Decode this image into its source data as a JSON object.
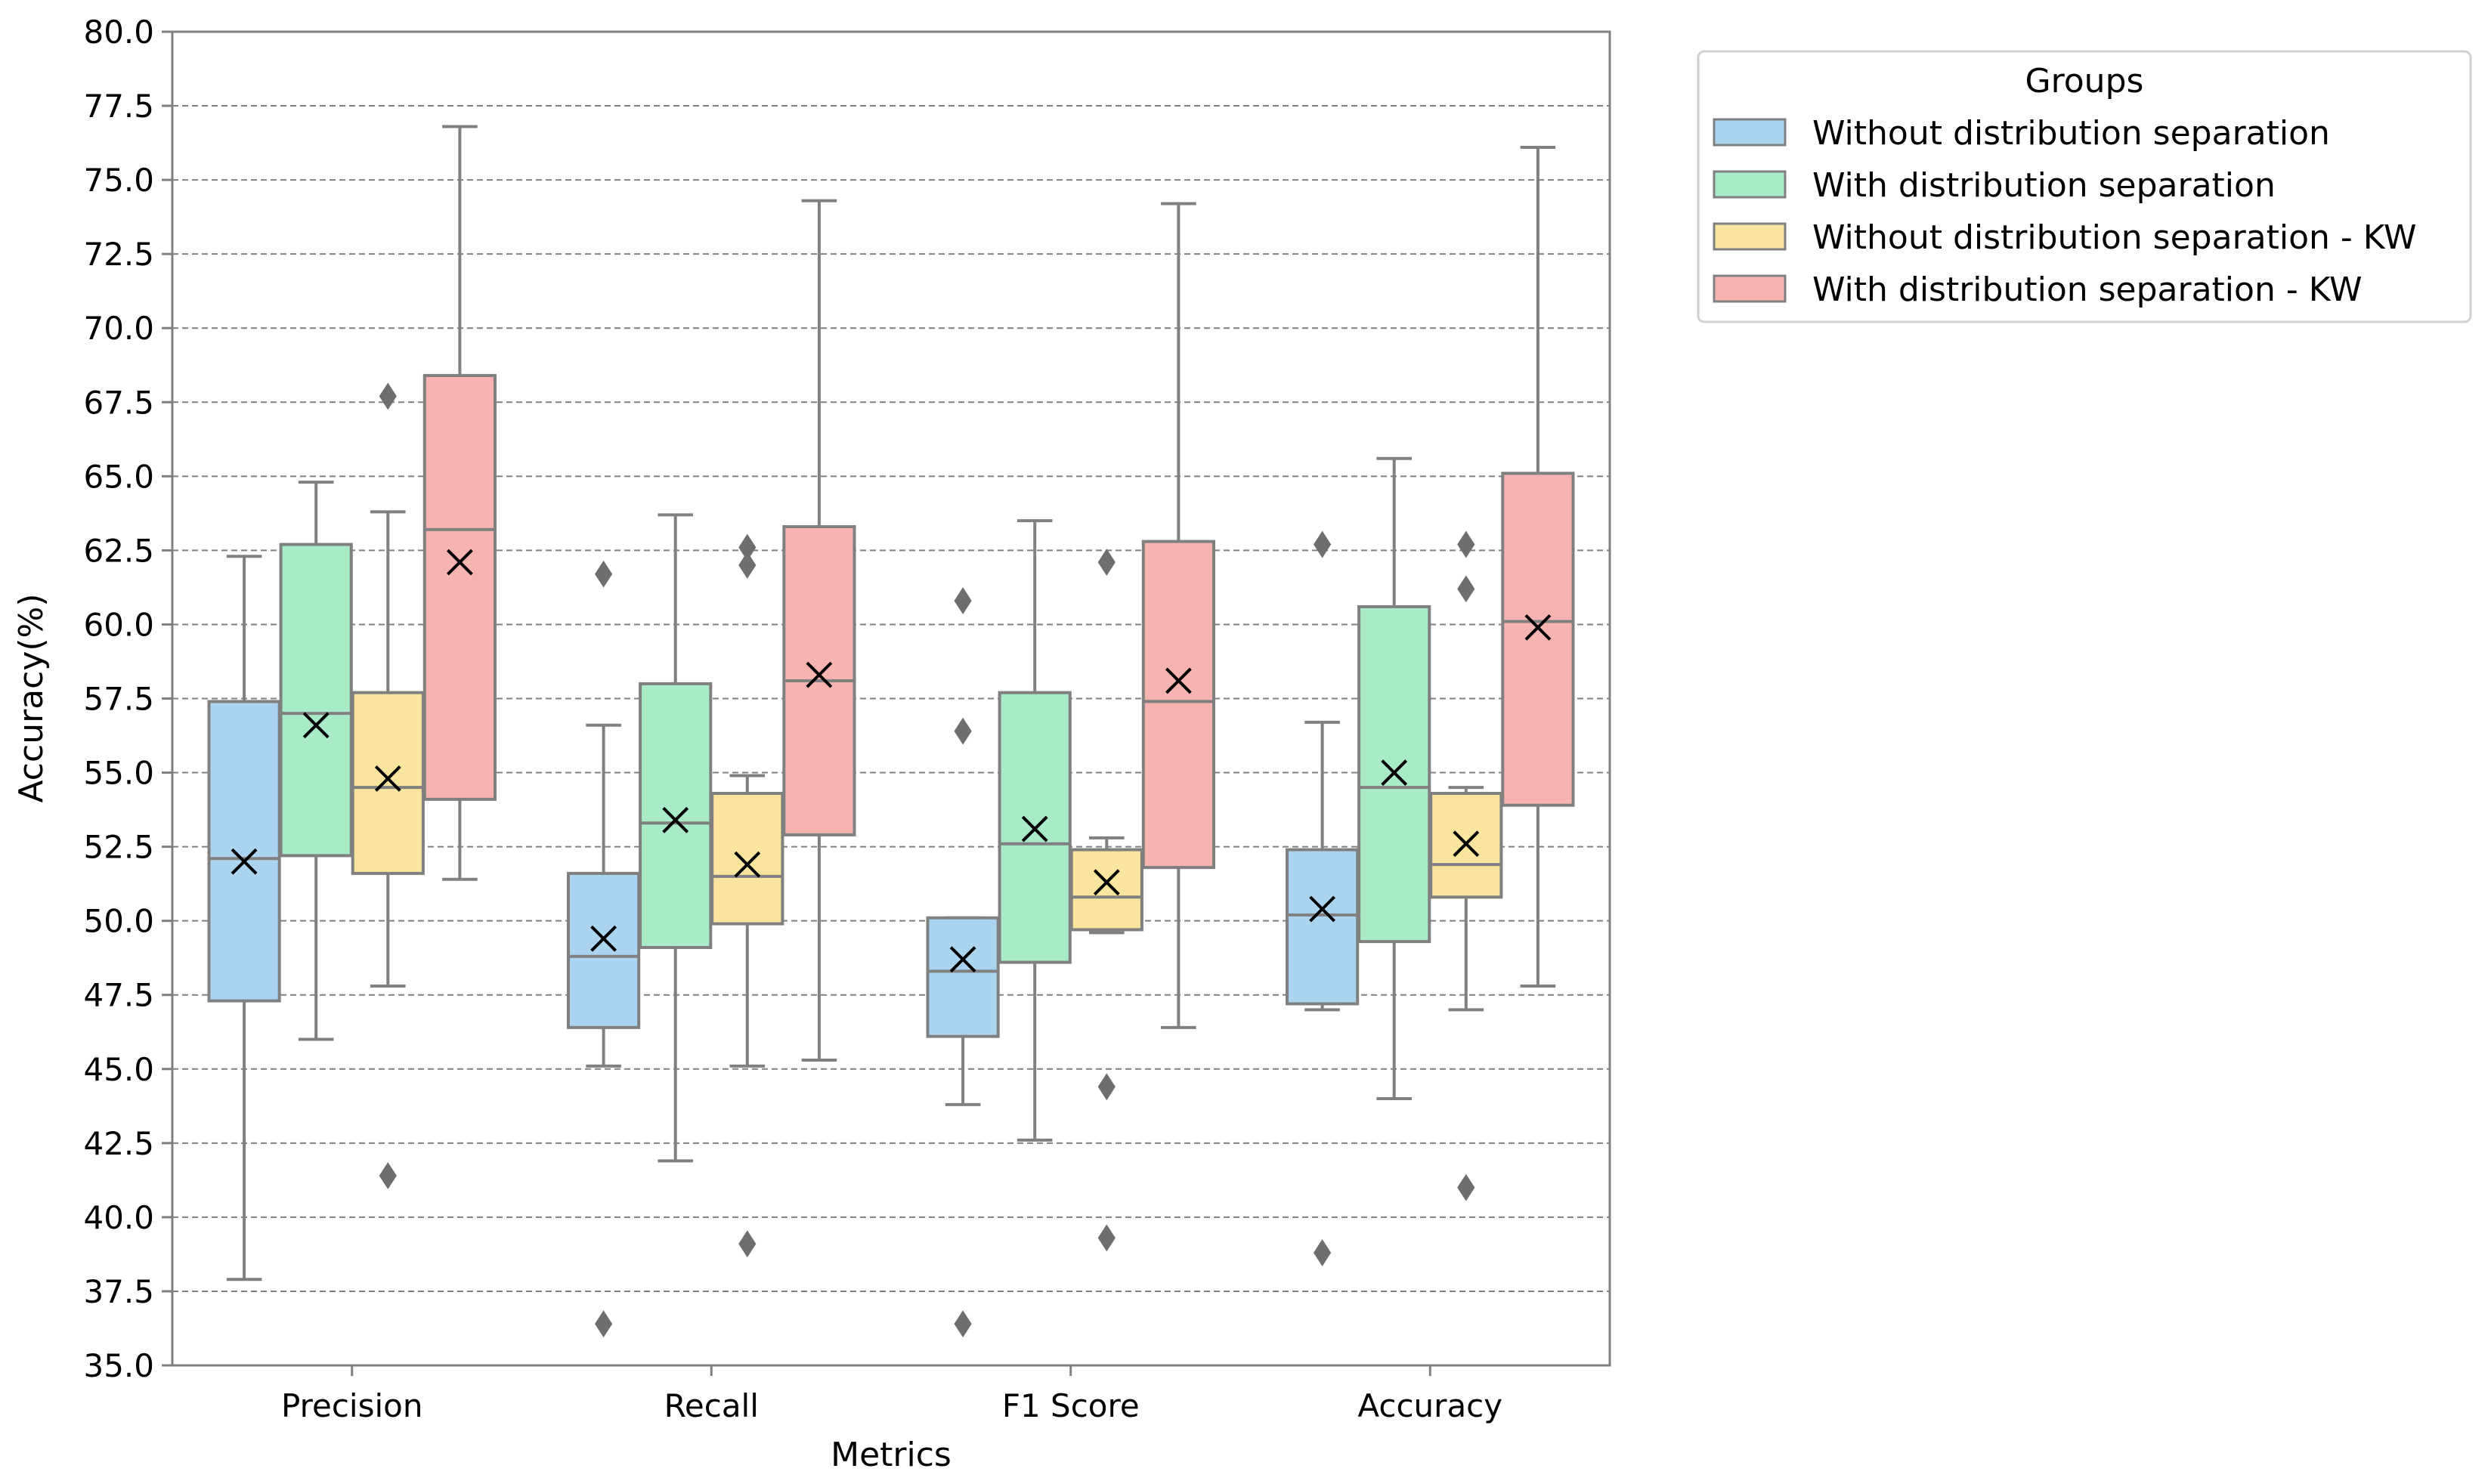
{
  "chart_data": {
    "type": "box",
    "xlabel": "Metrics",
    "ylabel": "Accuracy(%)",
    "ylim": [
      35.0,
      80.0
    ],
    "yticks": [
      "35.0",
      "37.5",
      "40.0",
      "42.5",
      "45.0",
      "47.5",
      "50.0",
      "52.5",
      "55.0",
      "57.5",
      "60.0",
      "62.5",
      "65.0",
      "67.5",
      "70.0",
      "72.5",
      "75.0",
      "77.5",
      "80.0"
    ],
    "grid": "horizontal dashed",
    "categories": [
      "Precision",
      "Recall",
      "F1 Score",
      "Accuracy"
    ],
    "legend": {
      "title": "Groups",
      "placement": "upper-right outside"
    },
    "series": [
      {
        "name": "Without distribution separation",
        "color": "#ABD4F1",
        "stats": [
          {
            "whislo": 37.9,
            "q1": 47.3,
            "median": 52.1,
            "q3": 57.4,
            "whishi": 62.3,
            "mean": 52.0,
            "fliers": []
          },
          {
            "whislo": 45.1,
            "q1": 46.4,
            "median": 48.8,
            "q3": 51.6,
            "whishi": 56.6,
            "mean": 49.4,
            "fliers": [
              61.7,
              36.4
            ]
          },
          {
            "whislo": 43.8,
            "q1": 46.1,
            "median": 48.3,
            "q3": 50.1,
            "whishi": 50.1,
            "mean": 48.7,
            "fliers": [
              60.8,
              56.4,
              36.4
            ]
          },
          {
            "whislo": 47.0,
            "q1": 47.2,
            "median": 50.2,
            "q3": 52.4,
            "whishi": 56.7,
            "mean": 50.4,
            "fliers": [
              62.7,
              38.8
            ]
          }
        ]
      },
      {
        "name": "With distribution separation",
        "color": "#A8EBC6",
        "stats": [
          {
            "whislo": 46.0,
            "q1": 52.2,
            "median": 57.0,
            "q3": 62.7,
            "whishi": 64.8,
            "mean": 56.6,
            "fliers": []
          },
          {
            "whislo": 41.9,
            "q1": 49.1,
            "median": 53.3,
            "q3": 58.0,
            "whishi": 63.7,
            "mean": 53.4,
            "fliers": []
          },
          {
            "whislo": 42.6,
            "q1": 48.6,
            "median": 52.6,
            "q3": 57.7,
            "whishi": 63.5,
            "mean": 53.1,
            "fliers": []
          },
          {
            "whislo": 44.0,
            "q1": 49.3,
            "median": 54.5,
            "q3": 60.6,
            "whishi": 65.6,
            "mean": 55.0,
            "fliers": []
          }
        ]
      },
      {
        "name": "Without distribution separation - KW",
        "color": "#F9E4A0",
        "stats": [
          {
            "whislo": 47.8,
            "q1": 51.6,
            "median": 54.5,
            "q3": 57.7,
            "whishi": 63.8,
            "mean": 54.8,
            "fliers": [
              67.7,
              41.4
            ]
          },
          {
            "whislo": 45.1,
            "q1": 49.9,
            "median": 51.5,
            "q3": 54.3,
            "whishi": 54.9,
            "mean": 51.9,
            "fliers": [
              62.6,
              62.0,
              39.1
            ]
          },
          {
            "whislo": 49.6,
            "q1": 49.7,
            "median": 50.8,
            "q3": 52.4,
            "whishi": 52.8,
            "mean": 51.3,
            "fliers": [
              62.1,
              44.4,
              39.3
            ]
          },
          {
            "whislo": 47.0,
            "q1": 50.8,
            "median": 51.9,
            "q3": 54.3,
            "whishi": 54.5,
            "mean": 52.6,
            "fliers": [
              62.7,
              61.2,
              41.0
            ]
          }
        ]
      },
      {
        "name": "With distribution separation - KW",
        "color": "#F6B3B0",
        "stats": [
          {
            "whislo": 51.4,
            "q1": 54.1,
            "median": 63.2,
            "q3": 68.4,
            "whishi": 76.8,
            "mean": 62.1,
            "fliers": []
          },
          {
            "whislo": 45.3,
            "q1": 52.9,
            "median": 58.1,
            "q3": 63.3,
            "whishi": 74.3,
            "mean": 58.3,
            "fliers": []
          },
          {
            "whislo": 46.4,
            "q1": 51.8,
            "median": 57.4,
            "q3": 62.8,
            "whishi": 74.2,
            "mean": 58.1,
            "fliers": []
          },
          {
            "whislo": 47.8,
            "q1": 53.9,
            "median": 60.1,
            "q3": 65.1,
            "whishi": 76.1,
            "mean": 59.9,
            "fliers": []
          }
        ]
      }
    ]
  }
}
